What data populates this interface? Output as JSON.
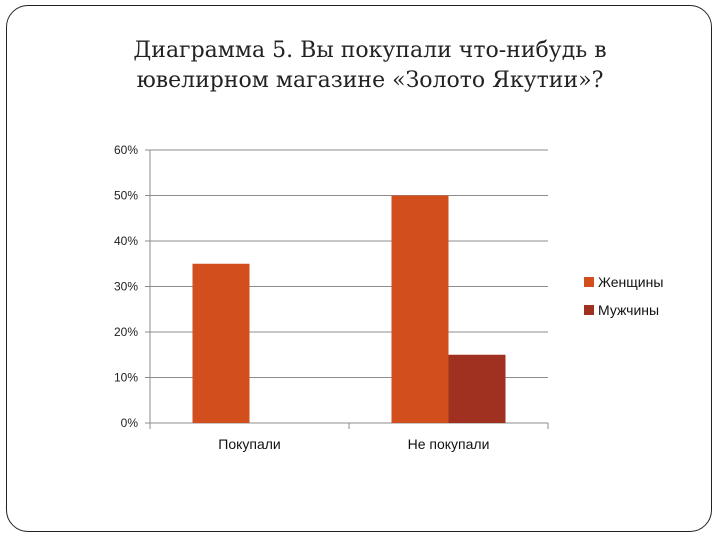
{
  "title_lines": [
    "Диаграмма 5. Вы покупали что-нибудь в",
    "ювелирном магазине «Золото Якутии»?"
  ],
  "chart_data": {
    "type": "bar",
    "categories": [
      "Покупали",
      "Не покупали"
    ],
    "series": [
      {
        "name": "Женщины",
        "values": [
          35,
          50
        ],
        "color": "#D24E1C"
      },
      {
        "name": "Мужчины",
        "values": [
          0,
          15
        ],
        "color": "#A0301F"
      }
    ],
    "ylim": [
      0,
      60
    ],
    "yticks": [
      0,
      10,
      20,
      30,
      40,
      50,
      60
    ],
    "ytick_labels": [
      "0%",
      "10%",
      "20%",
      "30%",
      "40%",
      "50%",
      "60%"
    ],
    "grid": true,
    "legend_position": "right"
  }
}
